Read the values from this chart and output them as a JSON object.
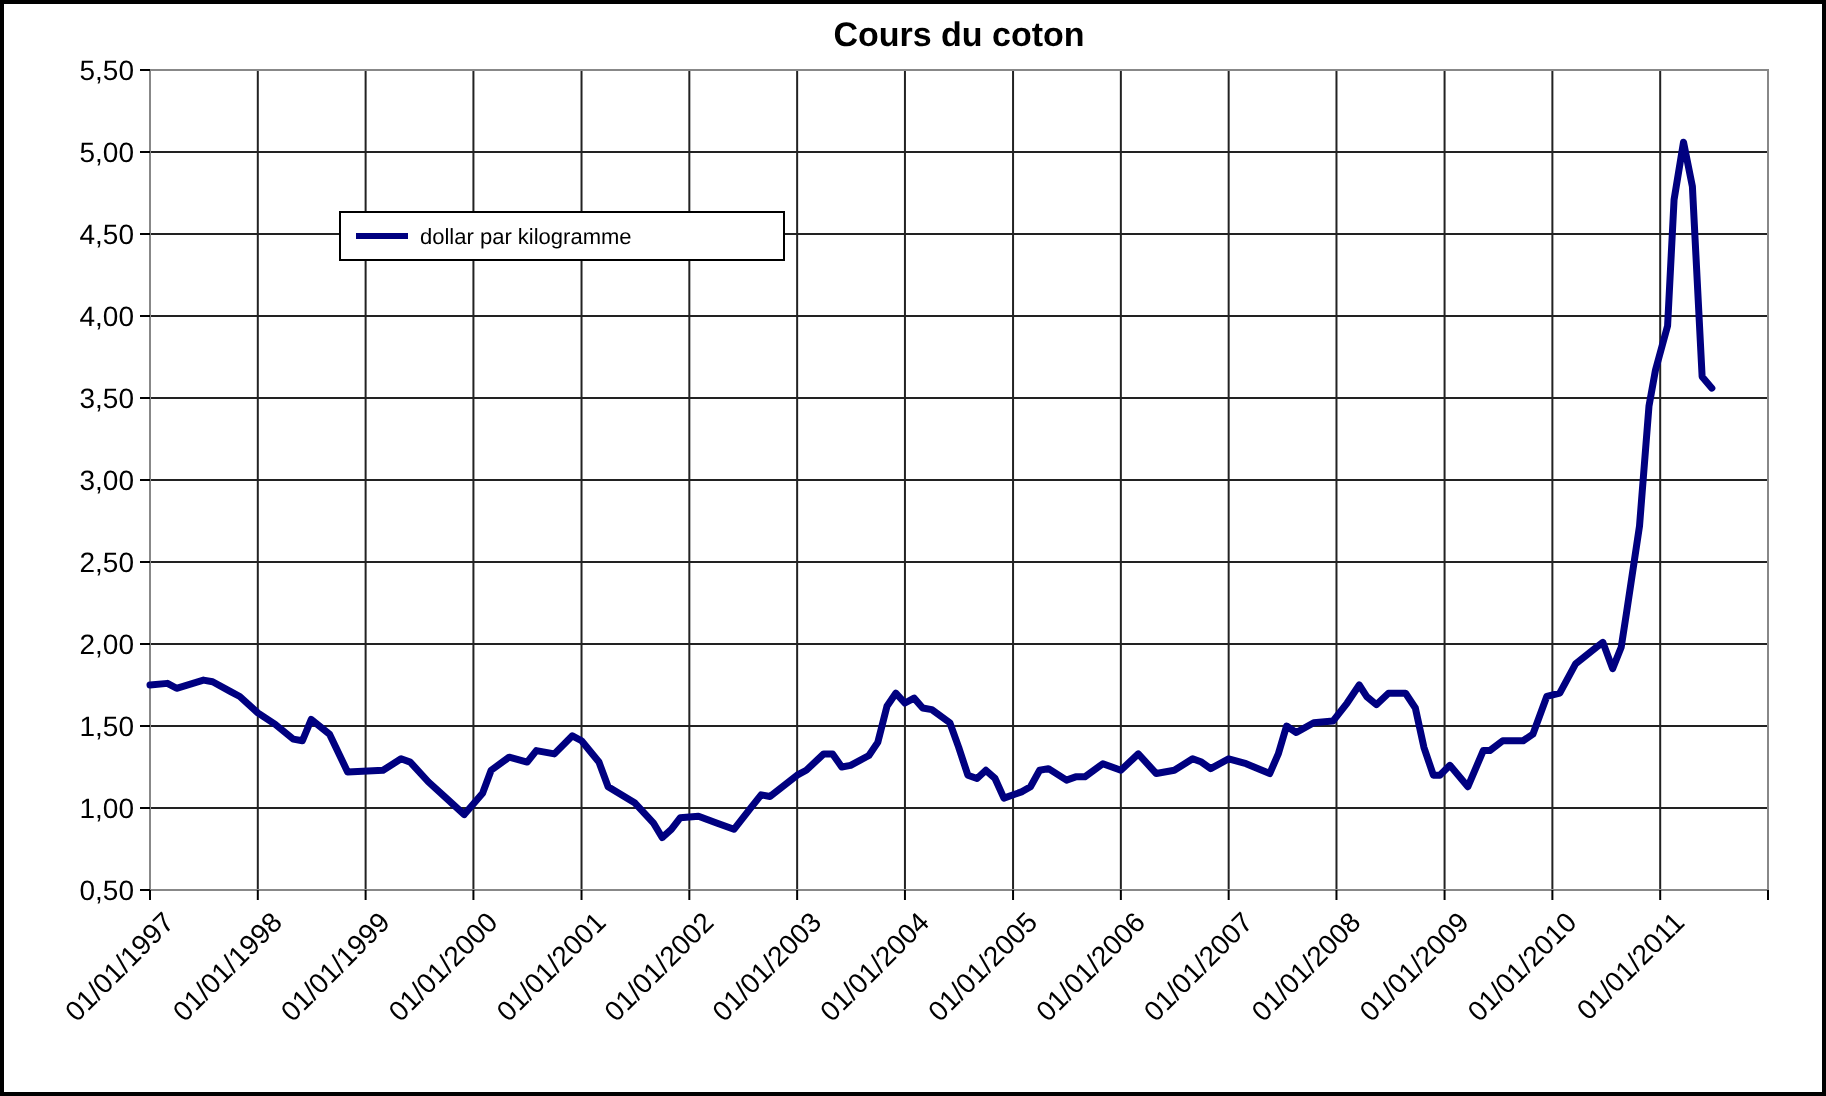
{
  "chart_data": {
    "type": "line",
    "title": "Cours du coton",
    "xlim": [
      "1997-01-01",
      "2012-01-01"
    ],
    "xticks": [
      {
        "value": "1997-01-01",
        "label": "01/01/1997"
      },
      {
        "value": "1998-01-01",
        "label": "01/01/1998"
      },
      {
        "value": "1999-01-01",
        "label": "01/01/1999"
      },
      {
        "value": "2000-01-01",
        "label": "01/01/2000"
      },
      {
        "value": "2001-01-01",
        "label": "01/01/2001"
      },
      {
        "value": "2002-01-01",
        "label": "01/01/2002"
      },
      {
        "value": "2003-01-01",
        "label": "01/01/2003"
      },
      {
        "value": "2004-01-01",
        "label": "01/01/2004"
      },
      {
        "value": "2005-01-01",
        "label": "01/01/2005"
      },
      {
        "value": "2006-01-01",
        "label": "01/01/2006"
      },
      {
        "value": "2007-01-01",
        "label": "01/01/2007"
      },
      {
        "value": "2008-01-01",
        "label": "01/01/2008"
      },
      {
        "value": "2009-01-01",
        "label": "01/01/2009"
      },
      {
        "value": "2010-01-01",
        "label": "01/01/2010"
      },
      {
        "value": "2011-01-01",
        "label": "01/01/2011"
      },
      {
        "value": "2012-01-01",
        "label": null
      }
    ],
    "ylim": [
      0.5,
      5.5
    ],
    "yticks": [
      {
        "value": 0.5,
        "label": "0,50"
      },
      {
        "value": 1,
        "label": "1,00"
      },
      {
        "value": 1.5,
        "label": "1,50"
      },
      {
        "value": 2,
        "label": "2,00"
      },
      {
        "value": 2.5,
        "label": "2,50"
      },
      {
        "value": 3,
        "label": "3,00"
      },
      {
        "value": 3.5,
        "label": "3,50"
      },
      {
        "value": 4,
        "label": "4,00"
      },
      {
        "value": 4.5,
        "label": "4,50"
      },
      {
        "value": 5,
        "label": "5,00"
      },
      {
        "value": 5.5,
        "label": "5,50"
      }
    ],
    "grid": true,
    "legend": "top left",
    "marker": "none",
    "line_style": "solid",
    "series": [
      {
        "name": "dollar par kilogramme",
        "color": "#000080",
        "x": [
          "1997-01-01",
          "1997-03-01",
          "1997-04-01",
          "1997-07-01",
          "1997-08-01",
          "1997-10-01",
          "1997-11-01",
          "1998-01-01",
          "1998-03-01",
          "1998-05-01",
          "1998-06-01",
          "1998-07-01",
          "1998-09-01",
          "1998-11-01",
          "1999-03-01",
          "1999-05-01",
          "1999-06-01",
          "1999-08-01",
          "1999-10-01",
          "1999-12-01",
          "2000-02-01",
          "2000-03-01",
          "2000-05-01",
          "2000-07-01",
          "2000-08-01",
          "2000-10-01",
          "2000-12-01",
          "2001-01-01",
          "2001-03-01",
          "2001-04-01",
          "2001-07-01",
          "2001-09-01",
          "2001-10-01",
          "2001-11-01",
          "2001-12-01",
          "2002-02-01",
          "2002-04-01",
          "2002-06-01",
          "2002-08-01",
          "2002-09-01",
          "2002-10-01",
          "2003-01-01",
          "2003-02-01",
          "2003-04-01",
          "2003-05-01",
          "2003-06-01",
          "2003-07-01",
          "2003-09-01",
          "2003-10-01",
          "2003-11-01",
          "2003-12-01",
          "2004-01-01",
          "2004-02-01",
          "2004-03-01",
          "2004-04-01",
          "2004-06-01",
          "2004-07-01",
          "2004-08-01",
          "2004-09-01",
          "2004-10-01",
          "2004-11-01",
          "2004-12-01",
          "2005-02-01",
          "2005-03-01",
          "2005-04-01",
          "2005-05-01",
          "2005-07-01",
          "2005-08-01",
          "2005-09-01",
          "2005-11-01",
          "2006-01-01",
          "2006-03-01",
          "2006-05-01",
          "2006-07-01",
          "2006-09-01",
          "2006-10-01",
          "2006-11-01",
          "2007-01-01",
          "2007-03-01",
          "2007-05-20",
          "2007-06-18",
          "2007-07-16",
          "2007-08-18",
          "2007-10-16",
          "2007-12-20",
          "2008-02-06",
          "2008-03-18",
          "2008-04-12",
          "2008-05-15",
          "2008-06-25",
          "2008-08-22",
          "2008-09-24",
          "2008-10-23",
          "2008-11-24",
          "2008-12-16",
          "2009-01-19",
          "2009-03-21",
          "2009-05-12",
          "2009-06-03",
          "2009-07-17",
          "2009-09-24",
          "2009-10-27",
          "2009-12-13",
          "2010-01-26",
          "2010-03-21",
          "2010-05-30",
          "2010-06-21",
          "2010-07-24",
          "2010-08-22",
          "2010-09-09",
          "2010-10-23",
          "2010-11-24",
          "2010-12-16",
          "2011-01-26",
          "2011-02-17",
          "2011-03-21",
          "2011-04-20",
          "2011-05-23",
          "2011-06-25"
        ],
        "values": [
          1.75,
          1.76,
          1.73,
          1.78,
          1.77,
          1.71,
          1.68,
          1.58,
          1.51,
          1.42,
          1.41,
          1.54,
          1.45,
          1.22,
          1.23,
          1.3,
          1.28,
          1.16,
          1.06,
          0.96,
          1.09,
          1.23,
          1.31,
          1.28,
          1.35,
          1.33,
          1.44,
          1.41,
          1.28,
          1.13,
          1.03,
          0.91,
          0.82,
          0.87,
          0.94,
          0.95,
          0.91,
          0.87,
          1.01,
          1.08,
          1.07,
          1.2,
          1.23,
          1.33,
          1.33,
          1.25,
          1.26,
          1.32,
          1.4,
          1.62,
          1.7,
          1.64,
          1.67,
          1.61,
          1.6,
          1.52,
          1.37,
          1.2,
          1.18,
          1.23,
          1.18,
          1.06,
          1.1,
          1.13,
          1.23,
          1.24,
          1.17,
          1.19,
          1.19,
          1.27,
          1.23,
          1.33,
          1.21,
          1.23,
          1.3,
          1.28,
          1.24,
          1.3,
          1.27,
          1.21,
          1.33,
          1.5,
          1.46,
          1.52,
          1.53,
          1.64,
          1.75,
          1.68,
          1.63,
          1.7,
          1.7,
          1.61,
          1.37,
          1.2,
          1.2,
          1.26,
          1.13,
          1.35,
          1.35,
          1.41,
          1.41,
          1.45,
          1.68,
          1.7,
          1.88,
          1.98,
          2.01,
          1.85,
          1.98,
          2.19,
          2.72,
          3.45,
          3.67,
          3.94,
          4.71,
          5.06,
          4.79,
          3.63,
          3.56
        ]
      }
    ]
  }
}
